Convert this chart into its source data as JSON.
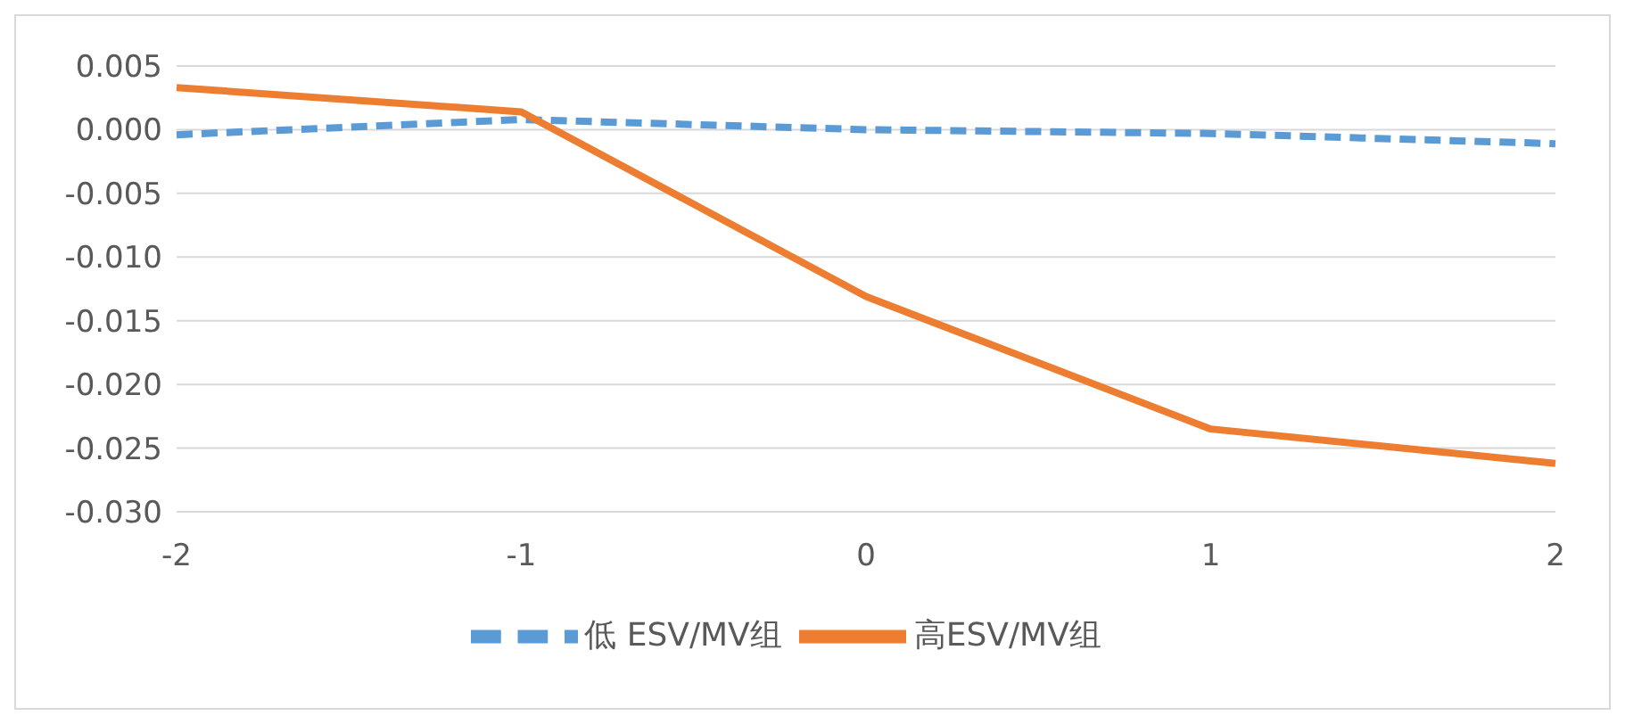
{
  "chart_data": {
    "type": "line",
    "categories": [
      "-2",
      "-1",
      "0",
      "1",
      "2"
    ],
    "series": [
      {
        "name": "低 ESV/MV组",
        "color": "#5b9bd5",
        "line_style": "dashed",
        "values": [
          -0.0004,
          0.0008,
          0.0,
          -0.0003,
          -0.0011
        ]
      },
      {
        "name": "高ESV/MV组",
        "color": "#ed7d31",
        "line_style": "solid",
        "values": [
          0.0033,
          0.0014,
          -0.0131,
          -0.0235,
          -0.0262
        ]
      }
    ],
    "ylim": [
      -0.03,
      0.005
    ],
    "yticks": [
      {
        "value": 0.005,
        "label": "0.005"
      },
      {
        "value": 0,
        "label": "0.000"
      },
      {
        "value": -0.005,
        "label": "-0.005"
      },
      {
        "value": -0.01,
        "label": "-0.010"
      },
      {
        "value": -0.015,
        "label": "-0.015"
      },
      {
        "value": -0.02,
        "label": "-0.020"
      },
      {
        "value": -0.025,
        "label": "-0.025"
      },
      {
        "value": -0.03,
        "label": "-0.030"
      }
    ],
    "grid": "y",
    "legend": "bottom",
    "marker": "none"
  }
}
